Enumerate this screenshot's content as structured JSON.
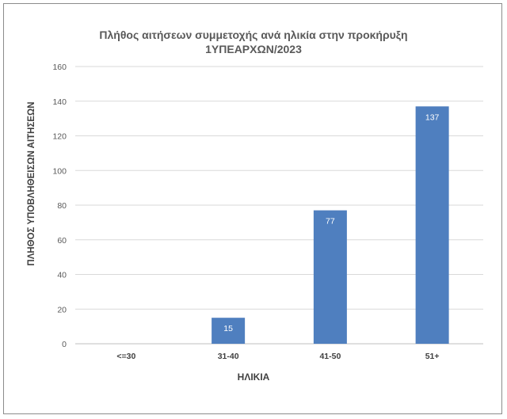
{
  "chart_data": {
    "type": "bar",
    "title_line1": "Πλήθος αιτήσεων συμμετοχής ανά ηλικία στην προκήρυξη",
    "title_line2": "1ΥΠΕΑΡΧΩΝ/2023",
    "xlabel": "ΗΛΙΚΙΑ",
    "ylabel": "ΠΛΗΘΟΣ ΥΠΟΒΛΗΘΕΙΣΩΝ ΑΙΤΗΣΕΩΝ",
    "categories": [
      "<=30",
      "31-40",
      "41-50",
      "51+"
    ],
    "values": [
      0,
      15,
      77,
      137
    ],
    "data_labels": [
      "",
      "15",
      "77",
      "137"
    ],
    "ylim": [
      0,
      160
    ],
    "yticks": [
      0,
      20,
      40,
      60,
      80,
      100,
      120,
      140,
      160
    ],
    "grid": true,
    "bar_color": "#4f7fbf"
  }
}
